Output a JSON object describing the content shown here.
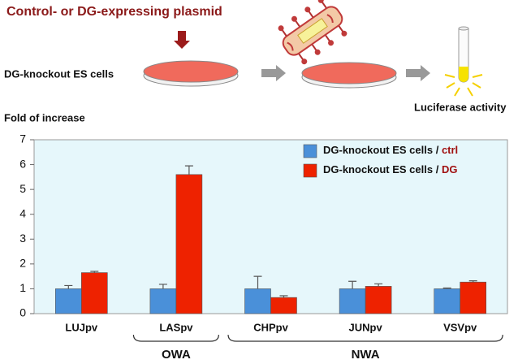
{
  "header": {
    "plasmid": "Control- or DG-expressing plasmid",
    "cells": "DG-knockout ES cells",
    "readout": "Luciferase activity"
  },
  "chart_data": {
    "type": "bar",
    "y_label": "Fold of increase",
    "categories": [
      "LUJpv",
      "LASpv",
      "CHPpv",
      "JUNpv",
      "VSVpv"
    ],
    "series": [
      {
        "name": "DG-knockout ES cells / ctrl",
        "color": "#4a90d9",
        "values": [
          1,
          1,
          1,
          1,
          1
        ],
        "errors": [
          0.13,
          0.18,
          0.5,
          0.3,
          0.03
        ]
      },
      {
        "name": "DG-knockout ES cells / DG",
        "color": "#ee2200",
        "values": [
          1.65,
          5.6,
          0.65,
          1.1,
          1.27
        ],
        "errors": [
          0.05,
          0.35,
          0.07,
          0.1,
          0.05
        ]
      }
    ],
    "ylim": [
      0,
      7
    ],
    "yticks": [
      0,
      1,
      2,
      3,
      4,
      5,
      6,
      7
    ],
    "legend": "upper right",
    "groups": [
      {
        "label": "OWA",
        "color": "#1a2a8a",
        "members": [
          "LASpv"
        ]
      },
      {
        "label": "NWA",
        "color": "#a01010",
        "members": [
          "CHPpv",
          "JUNpv",
          "VSVpv"
        ]
      }
    ]
  }
}
